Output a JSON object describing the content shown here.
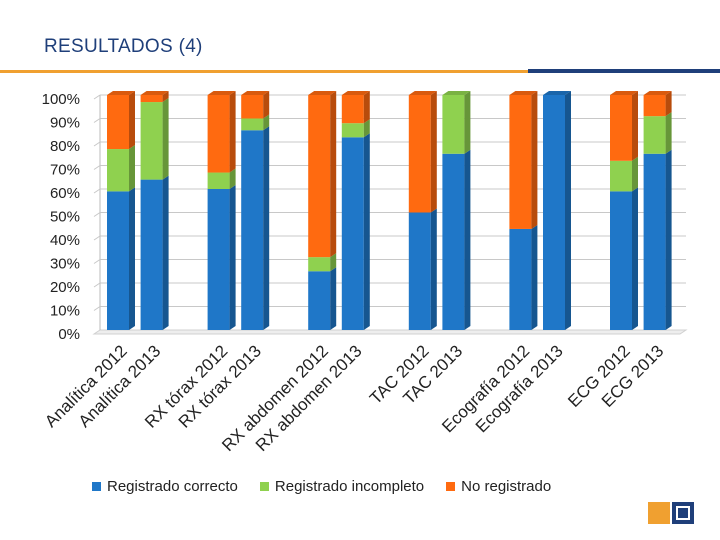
{
  "slide": {
    "title": "RESULTADOS (4)"
  },
  "colors": {
    "correcto": "#1f77c8",
    "incompleto": "#8fd14f",
    "no_registrado": "#ff6a10",
    "accent_orange": "#f0a030",
    "accent_blue": "#1f3f7a"
  },
  "chart_data": {
    "type": "bar",
    "stacked": "percent",
    "title": "",
    "xlabel": "",
    "ylabel": "",
    "ylim": [
      0,
      100
    ],
    "yticks": [
      "0%",
      "10%",
      "20%",
      "30%",
      "40%",
      "50%",
      "60%",
      "70%",
      "80%",
      "90%",
      "100%"
    ],
    "grid": true,
    "legend_position": "bottom",
    "categories": [
      "Analítica 2012",
      "Analítica 2013",
      "RX tórax 2012",
      "RX tórax 2013",
      "RX abdomen 2012",
      "RX abdomen 2013",
      "TAC 2012",
      "TAC 2013",
      "Ecografía 2012",
      "Ecografía 2013",
      "ECG 2012",
      "ECG 2013"
    ],
    "series": [
      {
        "name": "Registrado correcto",
        "color_key": "correcto",
        "values": [
          59,
          64,
          60,
          85,
          25,
          82,
          50,
          75,
          43,
          100,
          59,
          75
        ]
      },
      {
        "name": "Registrado incompleto",
        "color_key": "incompleto",
        "values": [
          18,
          33,
          7,
          5,
          6,
          6,
          0,
          25,
          0,
          0,
          13,
          16
        ]
      },
      {
        "name": "No registrado",
        "color_key": "no_registrado",
        "values": [
          23,
          3,
          33,
          10,
          69,
          12,
          50,
          0,
          57,
          0,
          28,
          9
        ]
      }
    ]
  }
}
